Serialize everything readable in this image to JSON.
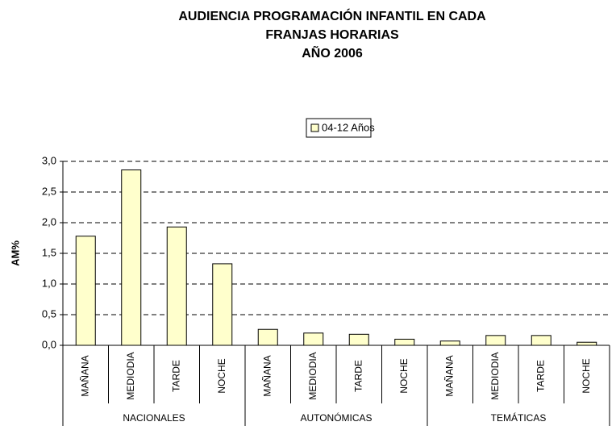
{
  "chart_data": {
    "type": "bar",
    "title": [
      "AUDIENCIA PROGRAMACIÓN INFANTIL EN CADA",
      "FRANJAS HORARIAS",
      "AÑO 2006"
    ],
    "y_label": "AM%",
    "groups": [
      {
        "name": "NACIONALES",
        "categories": [
          "MAÑANA",
          "MEDIODIA",
          "TARDE",
          "NOCHE"
        ]
      },
      {
        "name": "AUTONÓMICAS",
        "categories": [
          "MAÑANA",
          "MEDIODIA",
          "TARDE",
          "NOCHE"
        ]
      },
      {
        "name": "TEMÁTICAS",
        "categories": [
          "MAÑANA",
          "MEDIODIA",
          "TARDE",
          "NOCHE"
        ]
      }
    ],
    "series": [
      {
        "name": "04-12 Años",
        "color": "#ffffcc",
        "values": [
          1.78,
          2.86,
          1.93,
          1.33,
          0.26,
          0.2,
          0.18,
          0.1,
          0.07,
          0.16,
          0.16,
          0.05
        ]
      }
    ],
    "ylim": [
      0,
      3
    ],
    "yticks": [
      {
        "value": 0,
        "label": "0,0"
      },
      {
        "value": 0.5,
        "label": "0,5"
      },
      {
        "value": 1,
        "label": "1,0"
      },
      {
        "value": 1.5,
        "label": "1,5"
      },
      {
        "value": 2,
        "label": "2,0"
      },
      {
        "value": 2.5,
        "label": "2,5"
      },
      {
        "value": 3,
        "label": "3,0"
      }
    ],
    "grid": true,
    "legend": "top"
  }
}
